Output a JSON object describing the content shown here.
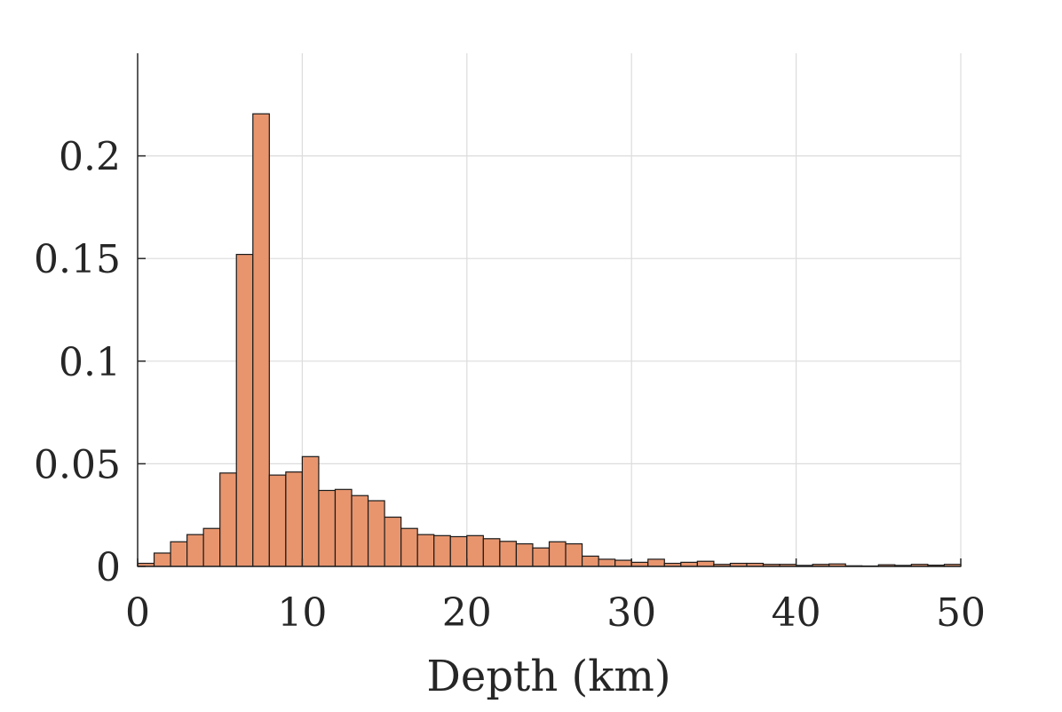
{
  "chart_data": {
    "type": "bar",
    "subtype": "histogram",
    "title": "",
    "xlabel": "Depth (km)",
    "ylabel": "",
    "xlim": [
      0,
      50
    ],
    "ylim": [
      0,
      0.25
    ],
    "grid": true,
    "legend": "none",
    "x_ticks": [
      {
        "value": 0,
        "label": "0"
      },
      {
        "value": 10,
        "label": "10"
      },
      {
        "value": 20,
        "label": "20"
      },
      {
        "value": 30,
        "label": "30"
      },
      {
        "value": 40,
        "label": "40"
      },
      {
        "value": 50,
        "label": "50"
      }
    ],
    "y_ticks": [
      {
        "value": 0,
        "label": "0"
      },
      {
        "value": 0.05,
        "label": "0.05"
      },
      {
        "value": 0.1,
        "label": "0.1"
      },
      {
        "value": 0.15,
        "label": "0.15"
      },
      {
        "value": 0.2,
        "label": "0.2"
      }
    ],
    "bin_edges": [
      0,
      1,
      2,
      3,
      4,
      5,
      6,
      7,
      8,
      9,
      10,
      11,
      12,
      13,
      14,
      15,
      16,
      17,
      18,
      19,
      20,
      21,
      22,
      23,
      24,
      25,
      26,
      27,
      28,
      29,
      30,
      31,
      32,
      33,
      34,
      35,
      36,
      37,
      38,
      39,
      40,
      41,
      42,
      43,
      44,
      45,
      46,
      47,
      48,
      49,
      50
    ],
    "values": [
      0.0015,
      0.0065,
      0.012,
      0.0155,
      0.0185,
      0.0455,
      0.152,
      0.2205,
      0.0445,
      0.046,
      0.0535,
      0.037,
      0.0375,
      0.0345,
      0.032,
      0.024,
      0.0185,
      0.0155,
      0.015,
      0.0145,
      0.015,
      0.0135,
      0.0122,
      0.011,
      0.009,
      0.012,
      0.011,
      0.005,
      0.0035,
      0.003,
      0.002,
      0.0035,
      0.0015,
      0.002,
      0.0025,
      0.001,
      0.0015,
      0.0015,
      0.001,
      0.001,
      0.0005,
      0.001,
      0.0012,
      0.0003,
      0.0002,
      0.0008,
      0.0005,
      0.001,
      0.0006,
      0.001
    ],
    "colors": {
      "bar_fill": "#E8956E",
      "bar_edge": "#1a1a1a",
      "grid": "#dcdcdc",
      "axis": "#262626",
      "text": "#262626"
    }
  }
}
